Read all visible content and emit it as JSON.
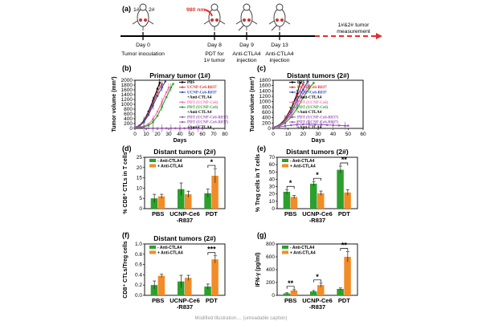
{
  "colors": {
    "green": "#2ca02c",
    "orange": "#f28c28",
    "red": "#e23030",
    "pink": "#ff69b4",
    "purple": "#9b59b6",
    "blue": "#2b4ab8",
    "black": "#000000"
  },
  "timeline": {
    "panel_label": "(a)",
    "marks": [
      {
        "day": "Day 0",
        "event": "Tumor inoculation"
      },
      {
        "day": "Day 8",
        "event": "PDT for\n1# tumor"
      },
      {
        "day": "Day 9",
        "event": "Anti-CTLA4\ninjection"
      },
      {
        "day": "Day 13",
        "event": "Anti-CTLA4\ninjection"
      }
    ],
    "laser": "980 nm",
    "mouse_labels": [
      "1#",
      "2#"
    ],
    "end_label": "1#&2# tumor\nmeasurement"
  },
  "chart_data": [
    {
      "id": "b",
      "type": "line",
      "panel_label": "(b)",
      "title": "Primary tumor (1#)",
      "xlabel": "Days",
      "ylabel": "Tumor volume (mm³)",
      "xlim": [
        0,
        80
      ],
      "ylim": [
        0,
        2000
      ],
      "xticks": [
        0,
        10,
        20,
        30,
        40,
        50,
        60,
        70,
        80
      ],
      "yticks": [
        0,
        200,
        400,
        600,
        800,
        1000,
        1200,
        1400,
        1600,
        1800,
        2000
      ],
      "legend": {
        "position": "top-left",
        "entries": [
          "PBS",
          "UCNP-Ce6-R837",
          "UCNP-Ce6-R837",
          "+Anti-CTLA4",
          "PDT (UCNP-Ce6)",
          "PDT (UCNP-Ce6)",
          "+Anti-CTLA4",
          "PDT (UCNP-Ce6-R837)",
          "PDT (UCNP-Ce6-R837)",
          "+Anti-CTLA4"
        ]
      },
      "series": [
        {
          "color": "#000000",
          "x": [
            0,
            4,
            8,
            12,
            16,
            20,
            22
          ],
          "y": [
            40,
            120,
            320,
            700,
            1150,
            1650,
            1900
          ]
        },
        {
          "color": "#e23030",
          "x": [
            0,
            4,
            8,
            12,
            16,
            20,
            24
          ],
          "y": [
            40,
            110,
            290,
            640,
            1050,
            1500,
            1850
          ]
        },
        {
          "color": "#2b4ab8",
          "x": [
            0,
            4,
            8,
            12,
            16,
            20,
            24,
            27
          ],
          "y": [
            40,
            100,
            260,
            560,
            950,
            1350,
            1700,
            1950
          ]
        },
        {
          "color": "#ff69b4",
          "x": [
            0,
            4,
            8,
            12,
            16,
            20,
            24,
            28,
            30
          ],
          "y": [
            40,
            60,
            90,
            180,
            380,
            700,
            1100,
            1500,
            1700
          ]
        },
        {
          "color": "#2ca02c",
          "x": [
            0,
            4,
            8,
            12,
            16,
            20,
            24,
            28,
            32,
            34
          ],
          "y": [
            40,
            50,
            70,
            120,
            260,
            520,
            900,
            1300,
            1700,
            1850
          ]
        },
        {
          "color": "#9b59b6",
          "x": [
            0,
            4,
            8,
            12,
            16,
            20,
            24,
            28,
            32,
            36,
            40,
            44,
            48,
            52,
            56,
            60
          ],
          "y": [
            40,
            50,
            20,
            8,
            5,
            5,
            5,
            5,
            5,
            5,
            5,
            5,
            5,
            5,
            5,
            5
          ]
        }
      ]
    },
    {
      "id": "c",
      "type": "line",
      "panel_label": "(c)",
      "title": "Distant tumors (2#)",
      "xlabel": "Days",
      "ylabel": "Tumor volume (mm³)",
      "xlim": [
        0,
        60
      ],
      "ylim": [
        0,
        1800
      ],
      "xticks": [
        0,
        10,
        20,
        30,
        40,
        50,
        60
      ],
      "yticks": [
        0,
        200,
        400,
        600,
        800,
        1000,
        1200,
        1400,
        1600,
        1800
      ],
      "legend": {
        "position": "top-right",
        "entries": [
          "PBS",
          "UCNP-Ce6-R837",
          "UCNP-Ce6-R837",
          "+Anti-CTLA4",
          "PDT (UCNP-Ce6)",
          "PDT (UCNP-Ce6)",
          "+Anti-CTLA4",
          "PDT (UCNP-Ce6-R837)",
          "PDT (UCNP-Ce6-R837)",
          "+Anti-CTLA4"
        ]
      },
      "series": [
        {
          "color": "#000000",
          "x": [
            0,
            4,
            8,
            12,
            16,
            18
          ],
          "y": [
            40,
            120,
            350,
            750,
            1300,
            1700
          ]
        },
        {
          "color": "#e23030",
          "x": [
            0,
            4,
            8,
            12,
            16,
            20
          ],
          "y": [
            40,
            110,
            320,
            700,
            1200,
            1650
          ]
        },
        {
          "color": "#2b4ab8",
          "x": [
            0,
            4,
            8,
            12,
            16,
            20,
            23
          ],
          "y": [
            40,
            100,
            280,
            600,
            1050,
            1450,
            1750
          ]
        },
        {
          "color": "#ff69b4",
          "x": [
            0,
            4,
            8,
            12,
            16,
            20,
            24
          ],
          "y": [
            40,
            90,
            240,
            520,
            900,
            1300,
            1600
          ]
        },
        {
          "color": "#2ca02c",
          "x": [
            0,
            4,
            8,
            12,
            16,
            20,
            24,
            27
          ],
          "y": [
            40,
            80,
            200,
            420,
            760,
            1150,
            1500,
            1700
          ]
        },
        {
          "color": "#9b59b6",
          "x": [
            0,
            4,
            8,
            12,
            16,
            20,
            24,
            28,
            32,
            36,
            40,
            44,
            48,
            50
          ],
          "y": [
            40,
            60,
            90,
            120,
            140,
            150,
            160,
            150,
            140,
            130,
            120,
            110,
            100,
            100
          ]
        }
      ]
    },
    {
      "id": "d",
      "type": "bar",
      "panel_label": "(d)",
      "title": "Distant tumors (2#)",
      "ylabel": "% CD8⁺ CTLs in T cells",
      "ylim": [
        0,
        25
      ],
      "yticks": [
        0,
        5,
        10,
        15,
        20,
        25
      ],
      "categories": [
        "PBS",
        "UCNP-Ce6\n-R837",
        "PDT"
      ],
      "legend": {
        "position": "top-left",
        "entries": [
          "- Anti-CTLA4",
          "+ Anti-CTLA4"
        ]
      },
      "series": [
        {
          "color": "#2ca02c",
          "values": [
            5,
            9.5,
            7.5
          ],
          "errors": [
            2,
            3,
            2
          ]
        },
        {
          "color": "#f28c28",
          "values": [
            6,
            7,
            16
          ],
          "errors": [
            1,
            1.5,
            3.5
          ]
        }
      ],
      "significance": [
        {
          "category": 2,
          "label": "*"
        }
      ]
    },
    {
      "id": "e",
      "type": "bar",
      "panel_label": "(e)",
      "title": "Distant tumors (2#)",
      "ylabel": "% Treg cells in T cells",
      "ylim": [
        0,
        70
      ],
      "yticks": [
        0,
        10,
        20,
        30,
        40,
        50,
        60,
        70
      ],
      "categories": [
        "PBS",
        "UCNP-Ce6\n-R837",
        "PDT"
      ],
      "legend": {
        "position": "top-left",
        "entries": [
          "- Anti-CTLA4",
          "+ Anti-CTLA4"
        ]
      },
      "series": [
        {
          "color": "#2ca02c",
          "values": [
            23,
            34,
            53
          ],
          "errors": [
            3,
            3,
            5
          ]
        },
        {
          "color": "#f28c28",
          "values": [
            16,
            21,
            22
          ],
          "errors": [
            2,
            3,
            4
          ]
        }
      ],
      "significance": [
        {
          "category": 0,
          "label": "*"
        },
        {
          "category": 1,
          "label": "*"
        },
        {
          "category": 2,
          "label": "**"
        }
      ]
    },
    {
      "id": "f",
      "type": "bar",
      "panel_label": "(f)",
      "title": "Distant tumors (2#)",
      "ylabel": "CD8⁺ CTLs/Treg cells",
      "ylim": [
        0,
        1.0
      ],
      "yticks": [
        0,
        0.2,
        0.4,
        0.6,
        0.8,
        1.0
      ],
      "categories": [
        "PBS",
        "UCNP-Ce6\n-R837",
        "PDT"
      ],
      "legend": {
        "position": "top-left",
        "entries": [
          "- Anti-CTLA4",
          "+ Anti-CTLA4"
        ]
      },
      "series": [
        {
          "color": "#2ca02c",
          "values": [
            0.2,
            0.27,
            0.17
          ],
          "errors": [
            0.08,
            0.12,
            0.05
          ]
        },
        {
          "color": "#f28c28",
          "values": [
            0.38,
            0.34,
            0.7
          ],
          "errors": [
            0.03,
            0.05,
            0.07
          ]
        }
      ],
      "significance": [
        {
          "category": 2,
          "label": "***"
        }
      ]
    },
    {
      "id": "g",
      "type": "bar",
      "panel_label": "(g)",
      "title": "",
      "ylabel": "IFN-γ (pg/ml)",
      "ylim": [
        0,
        800
      ],
      "yticks": [
        0,
        200,
        400,
        600,
        800
      ],
      "categories": [
        "PBS",
        "UCNP-Ce6\n-R837",
        "PDT"
      ],
      "legend": {
        "position": "top-left",
        "entries": [
          "- Anti-CTLA4",
          "+ Anti-CTLA4"
        ]
      },
      "series": [
        {
          "color": "#2ca02c",
          "values": [
            30,
            60,
            100
          ],
          "errors": [
            10,
            15,
            15
          ]
        },
        {
          "color": "#f28c28",
          "values": [
            75,
            160,
            600
          ],
          "errors": [
            15,
            30,
            80
          ]
        }
      ],
      "significance": [
        {
          "category": 0,
          "label": "**"
        },
        {
          "category": 1,
          "label": "*"
        },
        {
          "category": 2,
          "label": "**"
        }
      ]
    }
  ],
  "footer_text": "Modified Illustration.... (unreadable caption)"
}
